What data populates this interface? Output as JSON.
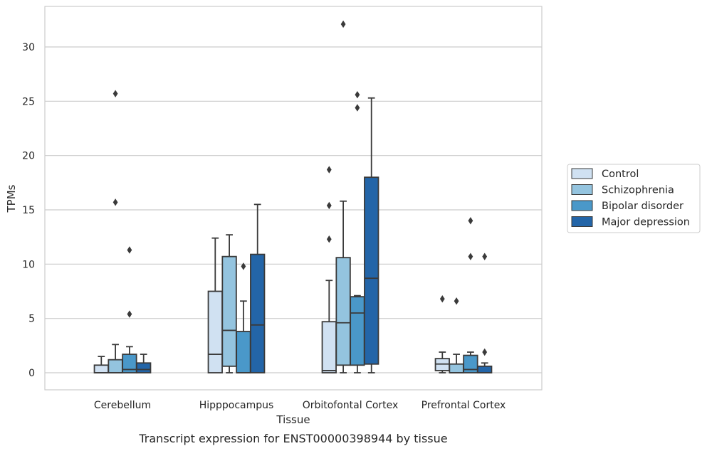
{
  "caption": "Transcript expression for ENST00000398944 by tissue",
  "chart_data": {
    "type": "boxplot",
    "xlabel": "Tissue",
    "ylabel": "TPMs",
    "ylim": [
      -1.5,
      33.5
    ],
    "yticks": [
      0,
      5,
      10,
      15,
      20,
      25,
      30
    ],
    "grid": "horizontal",
    "legend_position": "right",
    "categories": [
      "Cerebellum",
      "Hipppocampus",
      "Orbitofontal Cortex",
      "Prefrontal Cortex"
    ],
    "series": [
      {
        "name": "Control",
        "color": "#d0e1f2",
        "boxes": [
          {
            "whisker_low": 0,
            "q1": 0,
            "median": 0,
            "q3": 0.7,
            "whisker_high": 1.5,
            "outliers": []
          },
          {
            "whisker_low": 0,
            "q1": 0,
            "median": 1.7,
            "q3": 7.5,
            "whisker_high": 12.4,
            "outliers": []
          },
          {
            "whisker_low": 0,
            "q1": 0,
            "median": 0.2,
            "q3": 4.7,
            "whisker_high": 8.5,
            "outliers": [
              12.3,
              15.4,
              18.7
            ]
          },
          {
            "whisker_low": 0,
            "q1": 0.2,
            "median": 0.8,
            "q3": 1.3,
            "whisker_high": 1.9,
            "outliers": [
              6.8
            ]
          }
        ]
      },
      {
        "name": "Schizophrenia",
        "color": "#94c4df",
        "boxes": [
          {
            "whisker_low": 0,
            "q1": 0,
            "median": 0,
            "q3": 1.2,
            "whisker_high": 2.6,
            "outliers": [
              15.7,
              25.7
            ]
          },
          {
            "whisker_low": 0,
            "q1": 0.6,
            "median": 3.9,
            "q3": 10.7,
            "whisker_high": 12.7,
            "outliers": []
          },
          {
            "whisker_low": 0,
            "q1": 0.7,
            "median": 4.6,
            "q3": 10.6,
            "whisker_high": 15.8,
            "outliers": [
              32.1
            ]
          },
          {
            "whisker_low": 0,
            "q1": 0,
            "median": 0,
            "q3": 0.8,
            "whisker_high": 1.7,
            "outliers": [
              6.6
            ]
          }
        ]
      },
      {
        "name": "Bipolar disorder",
        "color": "#4a98c9",
        "boxes": [
          {
            "whisker_low": 0,
            "q1": 0,
            "median": 0.3,
            "q3": 1.7,
            "whisker_high": 2.4,
            "outliers": [
              5.4,
              11.3
            ]
          },
          {
            "whisker_low": 0,
            "q1": 0,
            "median": 0,
            "q3": 3.8,
            "whisker_high": 6.6,
            "outliers": [
              9.8
            ]
          },
          {
            "whisker_low": 0,
            "q1": 0.7,
            "median": 5.5,
            "q3": 7.0,
            "whisker_high": 7.1,
            "outliers": [
              24.4,
              25.6
            ]
          },
          {
            "whisker_low": 0,
            "q1": 0,
            "median": 0.3,
            "q3": 1.6,
            "whisker_high": 1.9,
            "outliers": [
              10.7,
              14.0
            ]
          }
        ]
      },
      {
        "name": "Major depression",
        "color": "#2365a8",
        "boxes": [
          {
            "whisker_low": 0,
            "q1": 0,
            "median": 0.3,
            "q3": 0.9,
            "whisker_high": 1.7,
            "outliers": []
          },
          {
            "whisker_low": 0,
            "q1": 0,
            "median": 4.4,
            "q3": 10.9,
            "whisker_high": 15.5,
            "outliers": []
          },
          {
            "whisker_low": 0,
            "q1": 0.8,
            "median": 8.7,
            "q3": 18.0,
            "whisker_high": 25.3,
            "outliers": []
          },
          {
            "whisker_low": 0,
            "q1": 0,
            "median": 0,
            "q3": 0.6,
            "whisker_high": 0.9,
            "outliers": [
              1.9,
              10.7
            ]
          }
        ]
      }
    ]
  }
}
